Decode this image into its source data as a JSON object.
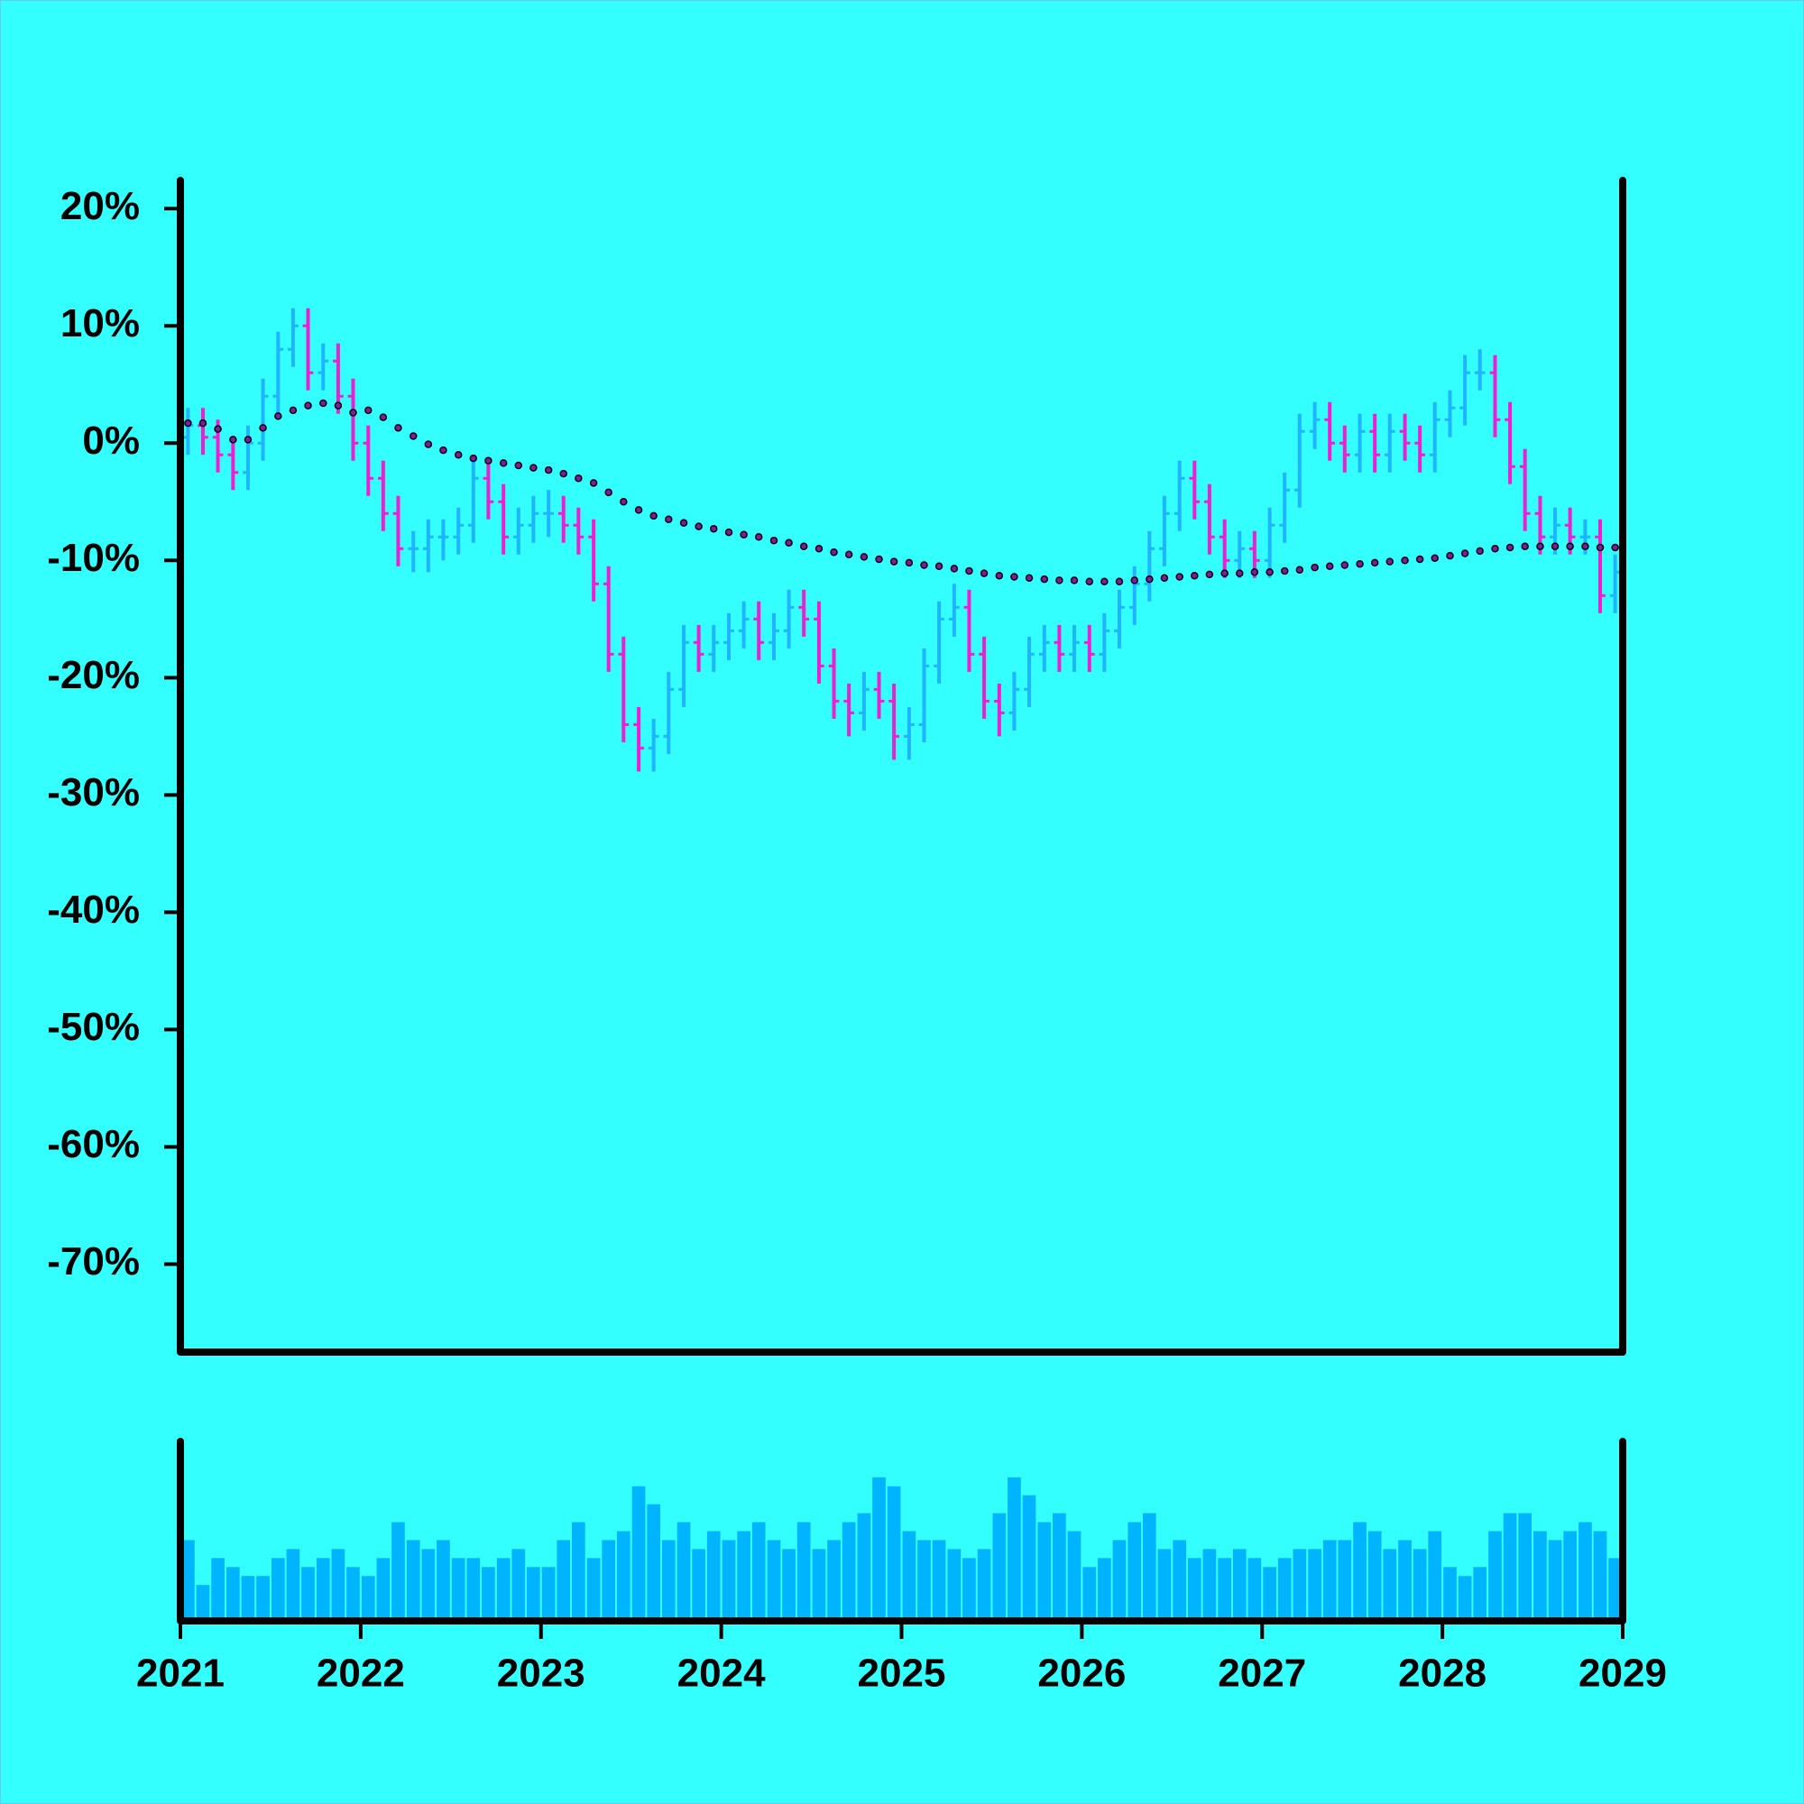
{
  "chart_data": {
    "type": "ohlc",
    "x": [
      2021.042,
      2021.125,
      2021.208,
      2021.292,
      2021.375,
      2021.458,
      2021.542,
      2021.625,
      2021.708,
      2021.792,
      2021.875,
      2021.958,
      2022.042,
      2022.125,
      2022.208,
      2022.292,
      2022.375,
      2022.458,
      2022.542,
      2022.625,
      2022.708,
      2022.792,
      2022.875,
      2022.958,
      2023.042,
      2023.125,
      2023.208,
      2023.292,
      2023.375,
      2023.458,
      2023.542,
      2023.625,
      2023.708,
      2023.792,
      2023.875,
      2023.958,
      2024.042,
      2024.125,
      2024.208,
      2024.292,
      2024.375,
      2024.458,
      2024.542,
      2024.625,
      2024.708,
      2024.792,
      2024.875,
      2024.958,
      2025.042,
      2025.125,
      2025.208,
      2025.292,
      2025.375,
      2025.458,
      2025.542,
      2025.625,
      2025.708,
      2025.792,
      2025.875,
      2025.958,
      2026.042,
      2026.125,
      2026.208,
      2026.292,
      2026.375,
      2026.458,
      2026.542,
      2026.625,
      2026.708,
      2026.792,
      2026.875,
      2026.958,
      2027.042,
      2027.125,
      2027.208,
      2027.292,
      2027.375,
      2027.458,
      2027.542,
      2027.625,
      2027.708,
      2027.792,
      2027.875,
      2027.958,
      2028.042,
      2028.125,
      2028.208,
      2028.292,
      2028.375,
      2028.458,
      2028.542,
      2028.625,
      2028.708,
      2028.792,
      2028.875,
      2028.958
    ],
    "open": [
      0.5,
      1.5,
      0.5,
      -1,
      -2.5,
      0,
      4,
      8,
      10,
      6,
      7,
      4,
      0,
      -3,
      -6,
      -9,
      -9,
      -8,
      -8,
      -7,
      -3,
      -5,
      -8,
      -7,
      -6,
      -6,
      -7,
      -8,
      -12,
      -18,
      -24,
      -26,
      -25,
      -21,
      -17,
      -18,
      -17,
      -16,
      -15,
      -17,
      -16,
      -14,
      -15,
      -19,
      -22,
      -23,
      -21,
      -22,
      -25,
      -24,
      -19,
      -15,
      -14,
      -18,
      -22,
      -23,
      -21,
      -18,
      -17,
      -18,
      -17,
      -18,
      -16,
      -14,
      -12,
      -9,
      -6,
      -3,
      -5,
      -8,
      -10,
      -9,
      -10,
      -7,
      -4,
      1,
      2,
      0,
      -1,
      1,
      -1,
      1,
      0,
      -1,
      2,
      3,
      6,
      6,
      2,
      -2,
      -6,
      -8,
      -7,
      -8,
      -8,
      -13
    ],
    "high": [
      3,
      3,
      2,
      0.5,
      1.5,
      5.5,
      9.5,
      11.5,
      11.5,
      8.5,
      8.5,
      5.5,
      1.5,
      -1.5,
      -4.5,
      -7.5,
      -6.5,
      -6.5,
      -5.5,
      -1.5,
      -1.5,
      -3.5,
      -5.5,
      -4.5,
      -4,
      -4.5,
      -5.5,
      -6.5,
      -10.5,
      -16.5,
      -22.5,
      -23.5,
      -19.5,
      -15.5,
      -15.5,
      -15.5,
      -14.5,
      -13.5,
      -13.5,
      -14.5,
      -12.5,
      -12.5,
      -13.5,
      -17.5,
      -20.5,
      -19.5,
      -19.5,
      -20.5,
      -22.5,
      -17.5,
      -13.5,
      -12,
      -12.5,
      -16.5,
      -20.5,
      -19.5,
      -16.5,
      -15.5,
      -15.5,
      -15.5,
      -15.5,
      -14.5,
      -12.5,
      -10.5,
      -7.5,
      -4.5,
      -1.5,
      -1.5,
      -3.5,
      -6.5,
      -7.5,
      -7.5,
      -5.5,
      -2.5,
      2.5,
      3.5,
      3.5,
      1.5,
      2.5,
      2.5,
      2.5,
      2.5,
      1.5,
      3.5,
      4.5,
      7.5,
      8,
      7.5,
      3.5,
      -0.5,
      -4.5,
      -5.5,
      -5.5,
      -6.5,
      -6.5,
      -9.5
    ],
    "low": [
      -1,
      -1,
      -2.5,
      -4,
      -4,
      -1.5,
      2.5,
      6.5,
      4.5,
      4.5,
      2.5,
      -1.5,
      -4.5,
      -7.5,
      -10.5,
      -11,
      -11,
      -10,
      -9.5,
      -8.5,
      -6.5,
      -9.5,
      -9.5,
      -8.5,
      -8,
      -8.5,
      -9.5,
      -13.5,
      -19.5,
      -25.5,
      -28,
      -28,
      -26.5,
      -22.5,
      -19.5,
      -19.5,
      -18.5,
      -17.5,
      -18.5,
      -18.5,
      -17.5,
      -16.5,
      -20.5,
      -23.5,
      -25,
      -24.5,
      -23.5,
      -27,
      -27,
      -25.5,
      -20.5,
      -16.5,
      -19.5,
      -23.5,
      -25,
      -24.5,
      -22.5,
      -19.5,
      -19.5,
      -19.5,
      -19.5,
      -19.5,
      -17.5,
      -15.5,
      -13.5,
      -10.5,
      -7.5,
      -6.5,
      -9.5,
      -11.5,
      -11.5,
      -11.5,
      -11.5,
      -8.5,
      -5.5,
      -0.5,
      -1.5,
      -2.5,
      -2.5,
      -2.5,
      -2.5,
      -1.5,
      -2.5,
      -2.5,
      0.5,
      1.5,
      4.5,
      0.5,
      -3.5,
      -7.5,
      -9.5,
      -9.5,
      -9.5,
      -9.5,
      -14.5,
      -14.5
    ],
    "close": [
      1.5,
      0.5,
      -1,
      -2.5,
      0,
      4,
      8,
      10,
      6,
      7,
      4,
      0,
      -3,
      -6,
      -9,
      -9,
      -8,
      -8,
      -7,
      -3,
      -5,
      -8,
      -7,
      -6,
      -6,
      -7,
      -8,
      -12,
      -18,
      -24,
      -26,
      -25,
      -21,
      -17,
      -18,
      -17,
      -16,
      -15,
      -17,
      -16,
      -14,
      -15,
      -19,
      -22,
      -23,
      -21,
      -22,
      -25,
      -24,
      -19,
      -15,
      -14,
      -18,
      -22,
      -23,
      -21,
      -18,
      -17,
      -18,
      -17,
      -18,
      -16,
      -14,
      -12,
      -9,
      -6,
      -3,
      -5,
      -8,
      -10,
      -9,
      -10,
      -7,
      -4,
      1,
      2,
      0,
      -1,
      1,
      -1,
      1,
      0,
      -1,
      2,
      3,
      6,
      6,
      2,
      -2,
      -6,
      -8,
      -7,
      -8,
      -8,
      -13,
      -11
    ],
    "up_color": "#1eb4ff",
    "down_color": "#f01ed2",
    "moving_average": {
      "color": "#7a1fa2",
      "values": [
        1.7,
        1.7,
        1.2,
        0.3,
        0.3,
        1.3,
        2.3,
        2.8,
        3.2,
        3.4,
        3.2,
        2.6,
        2.8,
        2.2,
        1.3,
        0.6,
        -0.1,
        -0.6,
        -1.0,
        -1.3,
        -1.5,
        -1.7,
        -1.9,
        -2.1,
        -2.3,
        -2.6,
        -3.0,
        -3.4,
        -4.2,
        -5.0,
        -5.7,
        -6.2,
        -6.5,
        -6.8,
        -7.1,
        -7.3,
        -7.6,
        -7.8,
        -8.0,
        -8.3,
        -8.5,
        -8.8,
        -9.0,
        -9.3,
        -9.5,
        -9.7,
        -9.9,
        -10.1,
        -10.2,
        -10.4,
        -10.5,
        -10.7,
        -10.9,
        -11.1,
        -11.3,
        -11.4,
        -11.5,
        -11.6,
        -11.7,
        -11.7,
        -11.8,
        -11.8,
        -11.8,
        -11.7,
        -11.6,
        -11.5,
        -11.4,
        -11.3,
        -11.2,
        -11.1,
        -11.1,
        -11.0,
        -11.0,
        -10.9,
        -10.8,
        -10.6,
        -10.5,
        -10.4,
        -10.3,
        -10.2,
        -10.1,
        -10.0,
        -9.9,
        -9.8,
        -9.6,
        -9.4,
        -9.2,
        -9.0,
        -8.9,
        -8.8,
        -8.8,
        -8.8,
        -8.8,
        -8.8,
        -8.9,
        -8.9
      ]
    },
    "volume": {
      "color": "#00b4ff",
      "ylim": [
        0,
        100
      ],
      "values": [
        45,
        20,
        35,
        30,
        25,
        25,
        35,
        40,
        30,
        35,
        40,
        30,
        25,
        35,
        55,
        45,
        40,
        45,
        35,
        35,
        30,
        35,
        40,
        30,
        30,
        45,
        55,
        35,
        45,
        50,
        75,
        65,
        45,
        55,
        40,
        50,
        45,
        50,
        55,
        45,
        40,
        55,
        40,
        45,
        55,
        60,
        80,
        75,
        50,
        45,
        45,
        40,
        35,
        40,
        60,
        80,
        70,
        55,
        60,
        50,
        30,
        35,
        45,
        55,
        60,
        40,
        45,
        35,
        40,
        35,
        40,
        35,
        30,
        35,
        40,
        40,
        45,
        45,
        55,
        50,
        40,
        45,
        40,
        50,
        30,
        25,
        30,
        50,
        60,
        60,
        50,
        45,
        50,
        55,
        50,
        35
      ]
    },
    "xlim": [
      2021,
      2029
    ],
    "xticks": [
      2021,
      2022,
      2023,
      2024,
      2025,
      2026,
      2027,
      2028,
      2029
    ],
    "ylim": [
      -77.5,
      22.4
    ],
    "yticks": [
      {
        "value": 20,
        "label": "20%"
      },
      {
        "value": 10,
        "label": "10%"
      },
      {
        "value": 0,
        "label": "0%"
      },
      {
        "value": -10,
        "label": "-10%"
      },
      {
        "value": -20,
        "label": "-20%"
      },
      {
        "value": -30,
        "label": "-30%"
      },
      {
        "value": -40,
        "label": "-40%"
      },
      {
        "value": -50,
        "label": "-50%"
      },
      {
        "value": -60,
        "label": "-60%"
      },
      {
        "value": -70,
        "label": "-70%"
      }
    ]
  }
}
